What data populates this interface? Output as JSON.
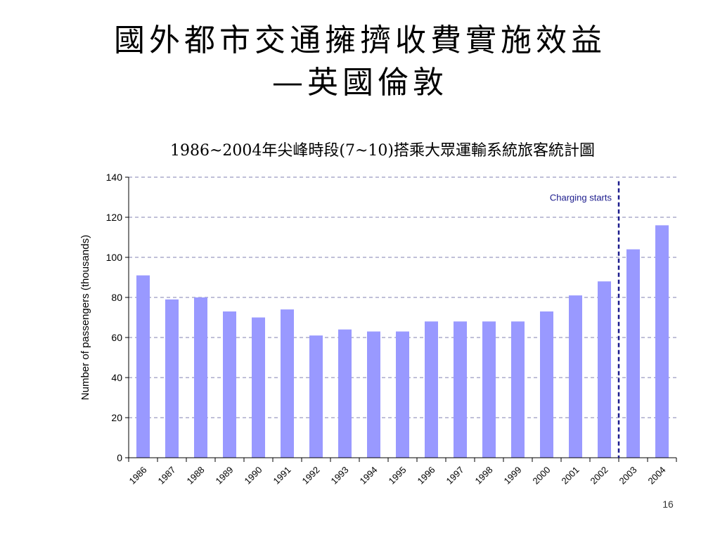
{
  "slide": {
    "title_line1": "國外都市交通擁擠收費實施效益",
    "title_line2": "—英國倫敦",
    "page_number": "16"
  },
  "chart_data": {
    "type": "bar",
    "title": "1986~2004年尖峰時段(7~10)搭乘大眾運輸系統旅客統計圖",
    "xlabel": "",
    "ylabel": "Number of  passengers (thousands)",
    "ylim": [
      0,
      140
    ],
    "yticks": [
      0,
      20,
      40,
      60,
      80,
      100,
      120,
      140
    ],
    "grid": true,
    "bar_color": "#9999ff",
    "grid_color": "#8080b0",
    "categories": [
      "1986",
      "1987",
      "1988",
      "1989",
      "1990",
      "1991",
      "1992",
      "1993",
      "1994",
      "1995",
      "1996",
      "1997",
      "1998",
      "1999",
      "2000",
      "2001",
      "2002",
      "2003",
      "2004"
    ],
    "values": [
      91,
      79,
      80,
      73,
      70,
      74,
      61,
      64,
      63,
      63,
      68,
      68,
      68,
      68,
      73,
      81,
      88,
      104,
      116
    ],
    "annotation": {
      "text": "Charging starts",
      "between": [
        "2002",
        "2003"
      ],
      "color": "#1a1a8c"
    }
  }
}
